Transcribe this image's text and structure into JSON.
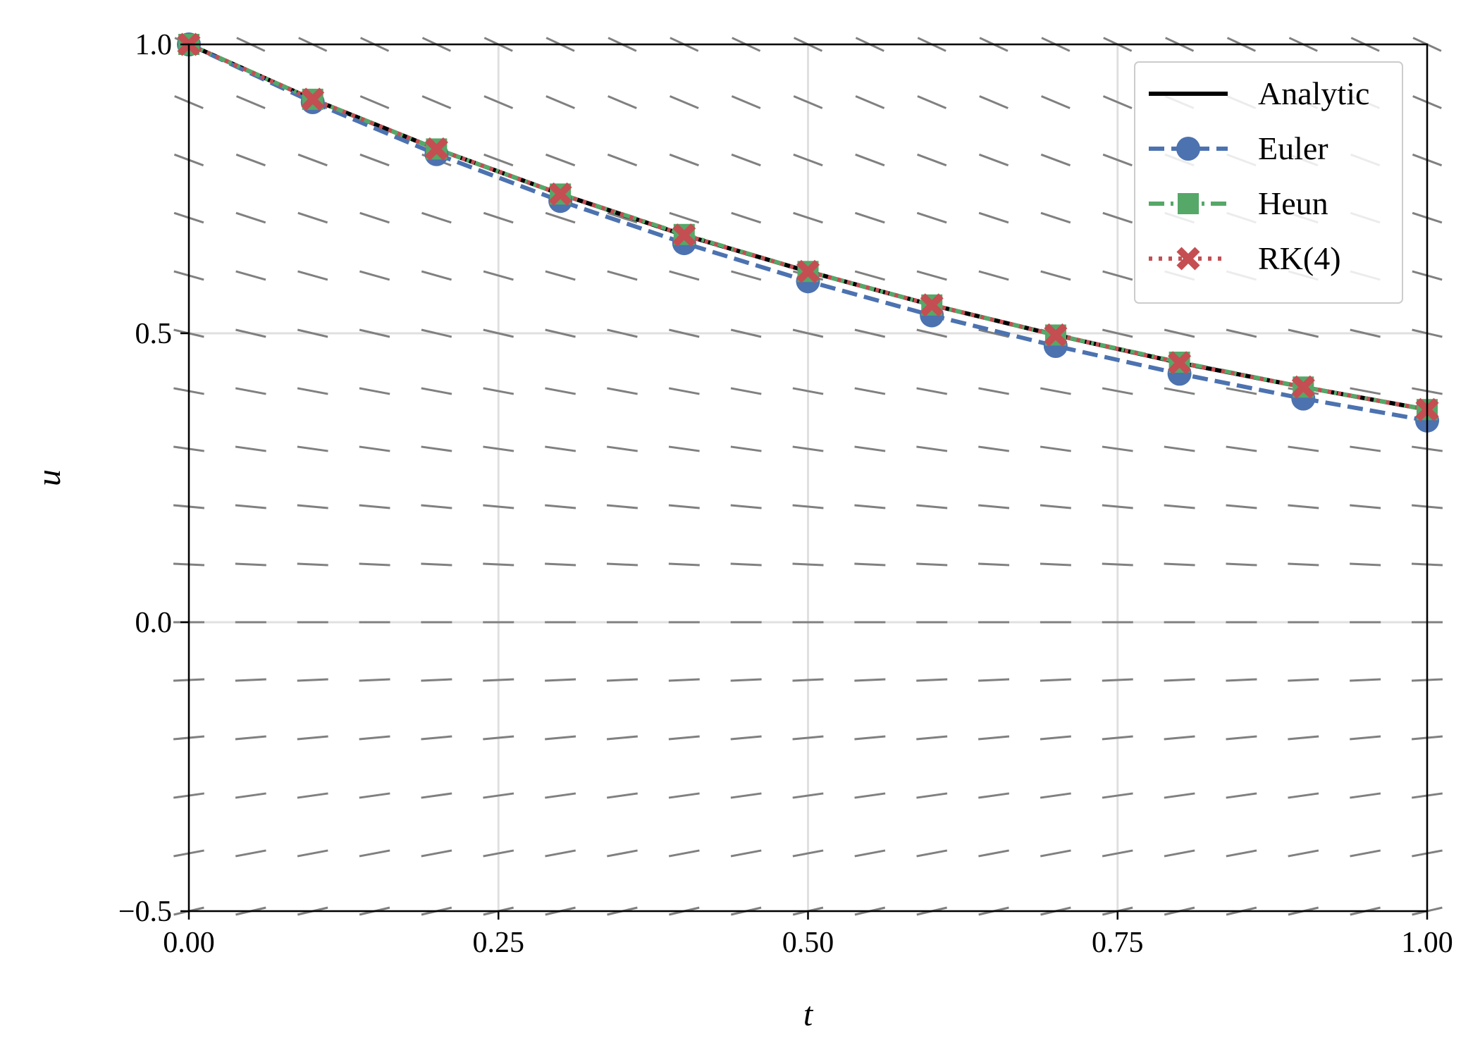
{
  "chart_data": {
    "type": "line",
    "title": "",
    "xlabel": "t",
    "ylabel": "u",
    "xlim": [
      0.0,
      1.0
    ],
    "ylim": [
      -0.5,
      1.0
    ],
    "x_ticks": [
      0.0,
      0.25,
      0.5,
      0.75,
      1.0
    ],
    "x_tick_labels": [
      "0.00",
      "0.25",
      "0.50",
      "0.75",
      "1.00"
    ],
    "y_ticks": [
      -0.5,
      0.0,
      0.5,
      1.0
    ],
    "y_tick_labels": [
      "−0.5",
      "0.0",
      "0.5",
      "1.0"
    ],
    "grid": true,
    "legend_position": "top-right",
    "slope_field": {
      "equation": "du/dt = -u",
      "color": "#808080",
      "t_values": [
        0.0,
        0.05,
        0.1,
        0.15,
        0.2,
        0.25,
        0.3,
        0.35,
        0.4,
        0.45,
        0.5,
        0.55,
        0.6,
        0.65,
        0.7,
        0.75,
        0.8,
        0.85,
        0.9,
        0.95,
        1.0
      ],
      "u_values": [
        1.0,
        0.9,
        0.8,
        0.7,
        0.6,
        0.5,
        0.4,
        0.3,
        0.2,
        0.1,
        0.0,
        -0.1,
        -0.2,
        -0.3,
        -0.4,
        -0.5
      ]
    },
    "series": [
      {
        "name": "Analytic",
        "color": "#000000",
        "style": "solid",
        "marker": "none",
        "x": [
          0.0,
          0.1,
          0.2,
          0.3,
          0.4,
          0.5,
          0.6,
          0.7,
          0.8,
          0.9,
          1.0
        ],
        "y": [
          1.0,
          0.905,
          0.819,
          0.741,
          0.67,
          0.607,
          0.549,
          0.497,
          0.449,
          0.407,
          0.368
        ]
      },
      {
        "name": "Euler",
        "color": "#4c72b0",
        "style": "dashed",
        "marker": "circle",
        "x": [
          0.0,
          0.1,
          0.2,
          0.3,
          0.4,
          0.5,
          0.6,
          0.7,
          0.8,
          0.9,
          1.0
        ],
        "y": [
          1.0,
          0.9,
          0.81,
          0.729,
          0.656,
          0.59,
          0.531,
          0.478,
          0.43,
          0.387,
          0.349
        ]
      },
      {
        "name": "Heun",
        "color": "#55a868",
        "style": "dashdot",
        "marker": "square",
        "x": [
          0.0,
          0.1,
          0.2,
          0.3,
          0.4,
          0.5,
          0.6,
          0.7,
          0.8,
          0.9,
          1.0
        ],
        "y": [
          1.0,
          0.905,
          0.819,
          0.741,
          0.671,
          0.607,
          0.549,
          0.497,
          0.45,
          0.407,
          0.368
        ]
      },
      {
        "name": "RK(4)",
        "color": "#c44e52",
        "style": "dotted",
        "marker": "x",
        "x": [
          0.0,
          0.1,
          0.2,
          0.3,
          0.4,
          0.5,
          0.6,
          0.7,
          0.8,
          0.9,
          1.0
        ],
        "y": [
          1.0,
          0.905,
          0.819,
          0.741,
          0.67,
          0.607,
          0.549,
          0.497,
          0.449,
          0.407,
          0.368
        ]
      }
    ]
  }
}
